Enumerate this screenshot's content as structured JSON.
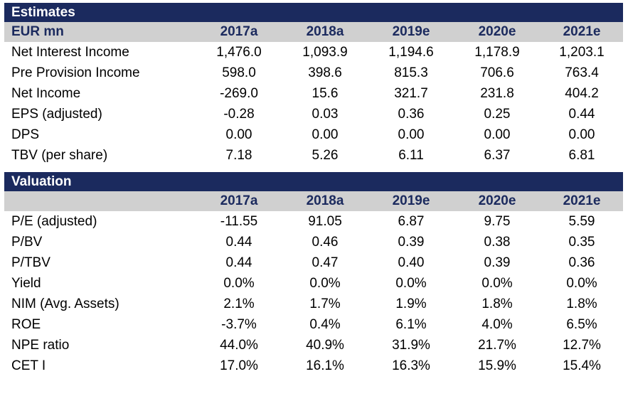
{
  "estimates": {
    "title": "Estimates",
    "unit_label": "EUR mn",
    "years": [
      "2017a",
      "2018a",
      "2019e",
      "2020e",
      "2021e"
    ],
    "rows": [
      {
        "label": "Net Interest Income",
        "values": [
          "1,476.0",
          "1,093.9",
          "1,194.6",
          "1,178.9",
          "1,203.1"
        ]
      },
      {
        "label": "Pre Provision Income",
        "values": [
          "598.0",
          "398.6",
          "815.3",
          "706.6",
          "763.4"
        ]
      },
      {
        "label": "Net Income",
        "values": [
          "-269.0",
          "15.6",
          "321.7",
          "231.8",
          "404.2"
        ]
      },
      {
        "label": "EPS (adjusted)",
        "values": [
          "-0.28",
          "0.03",
          "0.36",
          "0.25",
          "0.44"
        ]
      },
      {
        "label": "DPS",
        "values": [
          "0.00",
          "0.00",
          "0.00",
          "0.00",
          "0.00"
        ]
      },
      {
        "label": "TBV (per share)",
        "values": [
          "7.18",
          "5.26",
          "6.11",
          "6.37",
          "6.81"
        ]
      }
    ]
  },
  "valuation": {
    "title": "Valuation",
    "unit_label": "",
    "years": [
      "2017a",
      "2018a",
      "2019e",
      "2020e",
      "2021e"
    ],
    "rows": [
      {
        "label": "P/E (adjusted)",
        "values": [
          "-11.55",
          "91.05",
          "6.87",
          "9.75",
          "5.59"
        ]
      },
      {
        "label": "P/BV",
        "values": [
          "0.44",
          "0.46",
          "0.39",
          "0.38",
          "0.35"
        ]
      },
      {
        "label": "P/TBV",
        "values": [
          "0.44",
          "0.47",
          "0.40",
          "0.39",
          "0.36"
        ]
      },
      {
        "label": "Yield",
        "values": [
          "0.0%",
          "0.0%",
          "0.0%",
          "0.0%",
          "0.0%"
        ]
      },
      {
        "label": "NIM (Avg. Assets)",
        "values": [
          "2.1%",
          "1.7%",
          "1.9%",
          "1.8%",
          "1.8%"
        ]
      },
      {
        "label": "ROE",
        "values": [
          "-3.7%",
          "0.4%",
          "6.1%",
          "4.0%",
          "6.5%"
        ]
      },
      {
        "label": "NPE ratio",
        "values": [
          "44.0%",
          "40.9%",
          "31.9%",
          "21.7%",
          "12.7%"
        ]
      },
      {
        "label": "CET I",
        "values": [
          "17.0%",
          "16.1%",
          "16.3%",
          "15.9%",
          "15.4%"
        ]
      }
    ]
  },
  "colors": {
    "title_bar": "#1b2a5e",
    "header_band": "#d0d0d0",
    "header_text": "#1b2a5e"
  }
}
